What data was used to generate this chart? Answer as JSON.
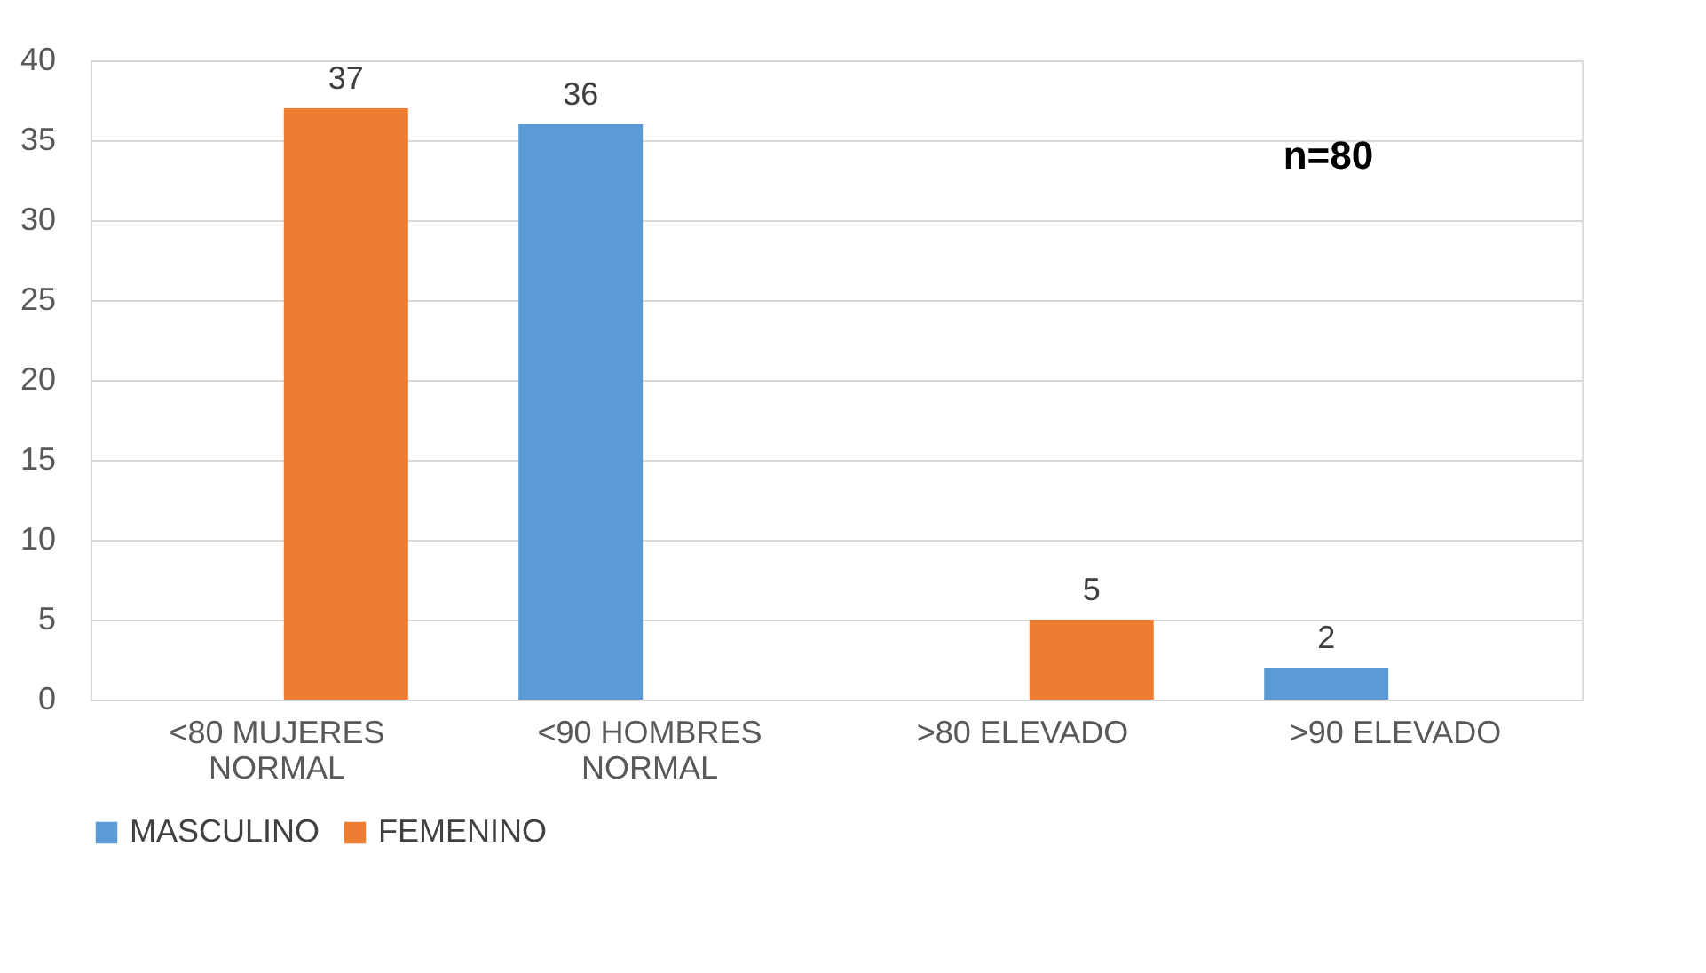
{
  "chart_data": {
    "type": "bar",
    "categories": [
      "<80 MUJERES\nNORMAL",
      "<90 HOMBRES\nNORMAL",
      ">80 ELEVADO",
      ">90 ELEVADO"
    ],
    "series": [
      {
        "name": "MASCULINO",
        "color": "#5b9bd5",
        "values": [
          null,
          36,
          null,
          2
        ]
      },
      {
        "name": "FEMENINO",
        "color": "#ed7d31",
        "values": [
          37,
          null,
          5,
          null
        ]
      }
    ],
    "ylim": [
      0,
      40
    ],
    "yticks": [
      0,
      5,
      10,
      15,
      20,
      25,
      30,
      35,
      40
    ],
    "grid": "y",
    "legend": "bottom",
    "data_labels": true,
    "annotations": [
      "n=80"
    ]
  }
}
